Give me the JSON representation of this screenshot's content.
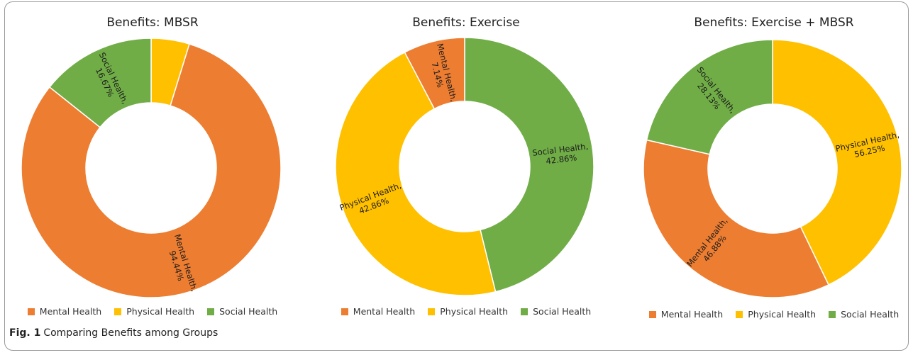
{
  "chart_data": [
    {
      "type": "pie",
      "title": "Benefits: MBSR",
      "categories": [
        "Mental Health",
        "Physical Health",
        "Social Health"
      ],
      "values": [
        94.44,
        5.56,
        16.67
      ],
      "labels": [
        "Mental Health, 94.44%",
        "",
        "Social Health, 16.67%"
      ],
      "legend": "bottom"
    },
    {
      "type": "pie",
      "title": "Benefits: Exercise",
      "categories": [
        "Mental Health",
        "Physical Health",
        "Social Health"
      ],
      "values": [
        7.14,
        42.86,
        42.86
      ],
      "labels": [
        "Mental Health, 7.14%",
        "Physical Health, 42.86%",
        "Social Health, 42.86%"
      ],
      "legend": "bottom"
    },
    {
      "type": "pie",
      "title": "Benefits: Exercise + MBSR",
      "categories": [
        "Mental Health",
        "Physical Health",
        "Social Health"
      ],
      "values": [
        46.88,
        56.25,
        28.13
      ],
      "labels": [
        "Mental Health, 46.88%",
        "Physical Health, 56.25%",
        "Social Health, 28.13%"
      ],
      "legend": "bottom"
    }
  ],
  "colors": {
    "Mental Health": "#ed7d31",
    "Physical Health": "#ffc000",
    "Social Health": "#70ad47"
  },
  "caption": {
    "label": "Fig. 1",
    "text": "Comparing Benefits among Groups"
  }
}
